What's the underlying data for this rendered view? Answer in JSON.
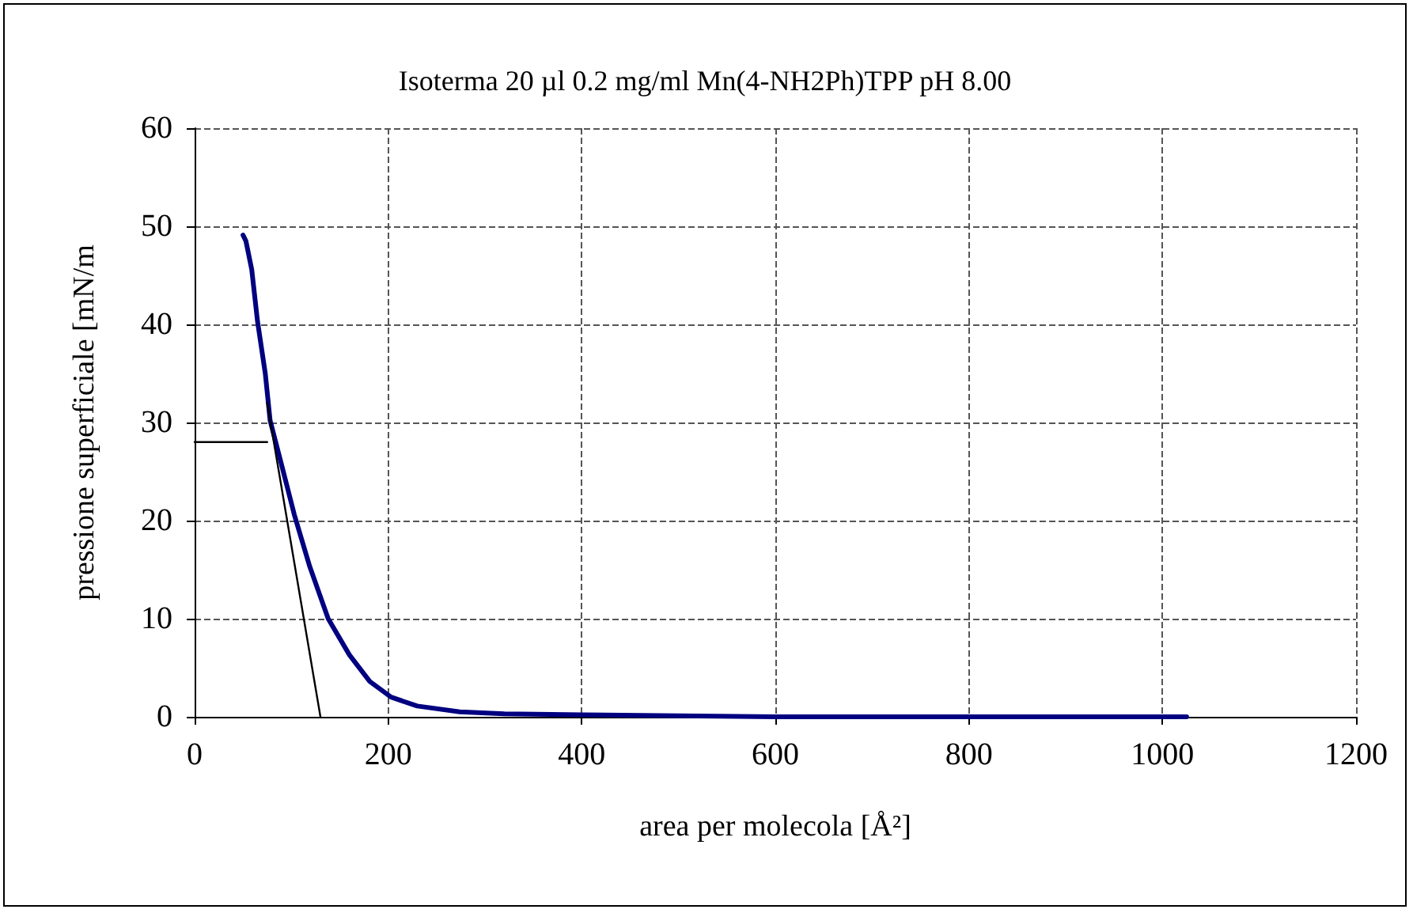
{
  "chart_data": {
    "type": "line",
    "title": "Isoterma 20 µl 0.2 mg/ml Mn(4-NH2Ph)TPP pH 8.00",
    "xlabel": "area per molecola [Å²]",
    "ylabel": "pressione superficiale [mN/m",
    "series": [
      {
        "color": "#000080",
        "x": [
          50,
          53,
          59,
          65,
          73,
          78,
          89,
          103,
          119,
          138,
          160,
          181,
          203,
          230,
          274,
          320,
          400,
          500,
          600,
          800,
          1025
        ],
        "values": [
          49.1,
          48.5,
          45.6,
          40.3,
          35,
          30.2,
          26,
          20.6,
          15.3,
          10,
          6.3,
          3.6,
          2,
          1.1,
          0.5,
          0.3,
          0.2,
          0.1,
          0,
          0,
          0
        ]
      },
      {
        "color": "#000000",
        "x": [
          75,
          130
        ],
        "values": [
          32,
          0
        ]
      },
      {
        "color": "#000000",
        "x": [
          0,
          75
        ],
        "values": [
          28,
          28
        ]
      }
    ],
    "xlim": [
      0,
      1200
    ],
    "xticks": [
      0,
      200,
      400,
      600,
      800,
      1000,
      1200
    ],
    "ylim": [
      0,
      60
    ],
    "yticks": [
      0,
      10,
      20,
      30,
      40,
      50,
      60
    ],
    "grid": true,
    "marker": "none",
    "line_style": "solid"
  }
}
